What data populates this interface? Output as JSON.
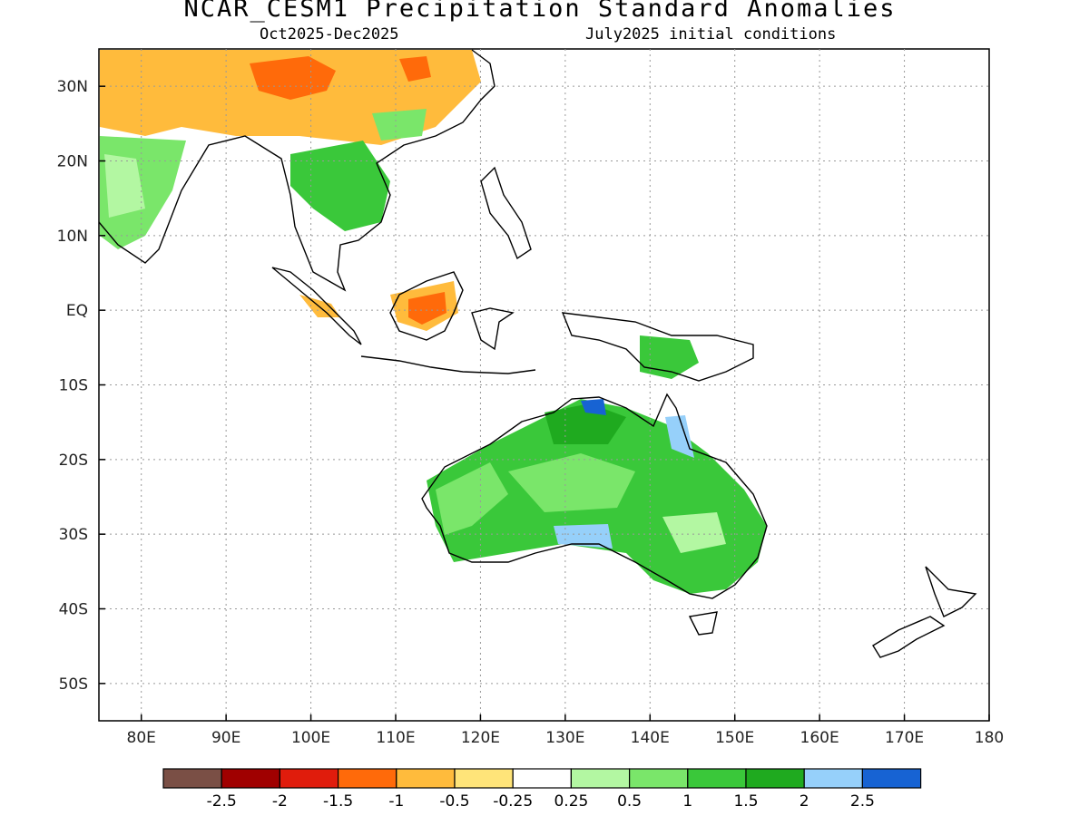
{
  "title": "NCAR_CESM1 Precipitation Standard Anomalies",
  "subtitle_left": "Oct2025-Dec2025",
  "subtitle_right": "July2025 initial conditions",
  "map": {
    "lon_range": [
      75,
      180
    ],
    "lat_range": [
      -55,
      35
    ],
    "lon_ticks": [
      "80E",
      "90E",
      "100E",
      "110E",
      "120E",
      "130E",
      "140E",
      "150E",
      "160E",
      "170E",
      "180"
    ],
    "lat_ticks": [
      "30N",
      "20N",
      "10N",
      "EQ",
      "10S",
      "20S",
      "30S",
      "40S",
      "50S"
    ]
  },
  "colorbar": {
    "labels": [
      "-2.5",
      "-2",
      "-1.5",
      "-1",
      "-0.5",
      "-0.25",
      "0.25",
      "0.5",
      "1",
      "1.5",
      "2",
      "2.5"
    ],
    "colors": [
      "#7a4f45",
      "#a00000",
      "#e01c0c",
      "#ff6a0a",
      "#ffbb3c",
      "#ffe479",
      "#ffffff",
      "#b3f7a2",
      "#7ae66a",
      "#3ac83a",
      "#1faa1f",
      "#96d0fa",
      "#1763d3"
    ]
  }
}
